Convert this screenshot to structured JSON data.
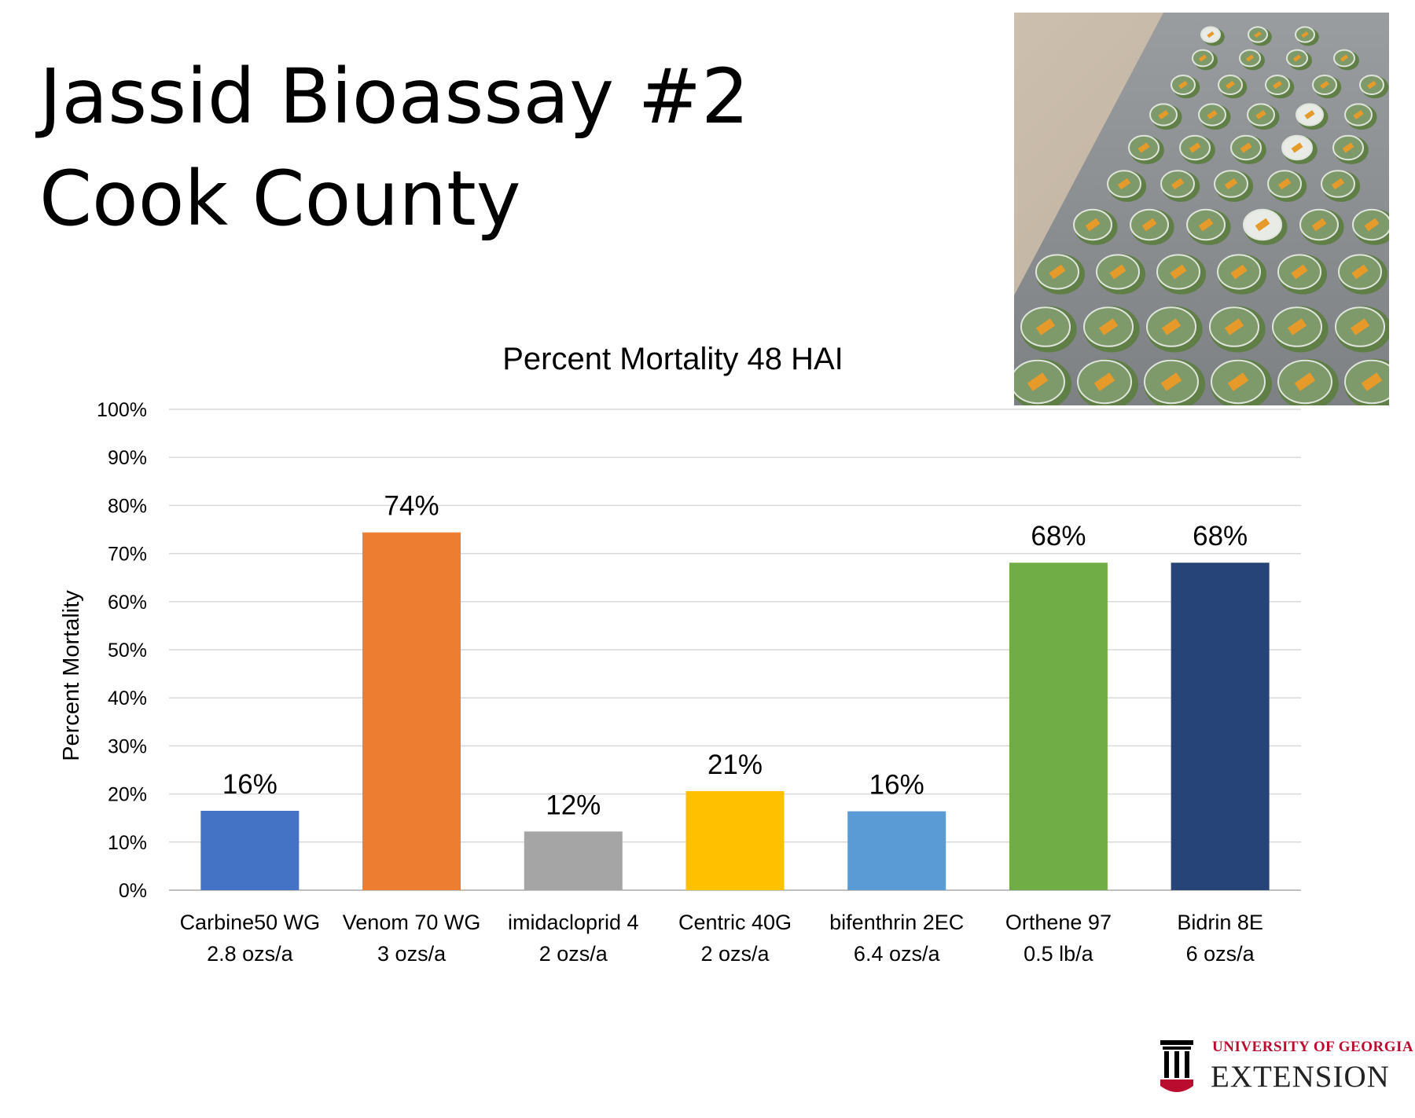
{
  "slide": {
    "title_line1": "Jassid Bioassay #2",
    "title_line2": "Cook County"
  },
  "photo": {
    "icon": "leaf-disc-bioassay-photo"
  },
  "chart_data": {
    "type": "bar",
    "title": "Percent Mortality 48 HAI",
    "xlabel": "",
    "ylabel": "Percent Mortality",
    "ylim": [
      0,
      100
    ],
    "y_ticks": [
      "0%",
      "10%",
      "20%",
      "30%",
      "40%",
      "50%",
      "60%",
      "70%",
      "80%",
      "90%",
      "100%"
    ],
    "grid": true,
    "legend": "none",
    "categories": [
      {
        "name": "Carbine50 WG",
        "rate": "2.8 ozs/a"
      },
      {
        "name": "Venom 70 WG",
        "rate": "3 ozs/a"
      },
      {
        "name": "imidacloprid 4",
        "rate": "2 ozs/a"
      },
      {
        "name": "Centric 40G",
        "rate": "2 ozs/a"
      },
      {
        "name": "bifenthrin 2EC",
        "rate": "6.4 ozs/a"
      },
      {
        "name": "Orthene 97",
        "rate": "0.5 lb/a"
      },
      {
        "name": "Bidrin 8E",
        "rate": "6 ozs/a"
      }
    ],
    "values": [
      16.5,
      74.4,
      12.2,
      20.6,
      16.4,
      68.1,
      68.1
    ],
    "data_labels": [
      "16%",
      "74%",
      "12%",
      "21%",
      "16%",
      "68%",
      "68%"
    ],
    "colors": [
      "#4472c4",
      "#ed7d31",
      "#a5a5a5",
      "#ffc000",
      "#5b9bd5",
      "#70ad47",
      "#264478"
    ]
  },
  "logo": {
    "line1": "UNIVERSITY OF GEORGIA",
    "line2": "EXTENSION",
    "color": "#ba0c2f"
  }
}
